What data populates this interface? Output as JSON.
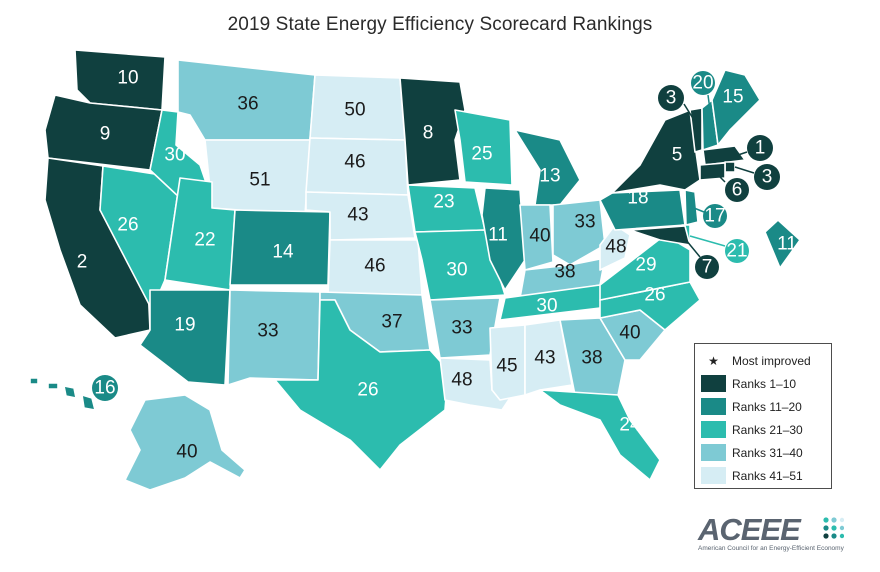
{
  "title": "2019 State Energy Efficiency Scorecard Rankings",
  "colors": {
    "ranks_1_10": "#10403f",
    "ranks_11_20": "#1a8a87",
    "ranks_21_30": "#2cbcae",
    "ranks_31_40": "#7ecad4",
    "ranks_41_51": "#d6edf4",
    "text_dark": "#1b1b1b",
    "text_light": "#ffffff"
  },
  "legend": {
    "most_improved": "Most improved",
    "items": [
      {
        "label": "Ranks 1–10",
        "tier": 1
      },
      {
        "label": "Ranks 11–20",
        "tier": 2
      },
      {
        "label": "Ranks 21–30",
        "tier": 3
      },
      {
        "label": "Ranks 31–40",
        "tier": 4
      },
      {
        "label": "Ranks 41–51",
        "tier": 5
      }
    ]
  },
  "states": [
    {
      "id": "WA",
      "rank": "10",
      "tier": 1
    },
    {
      "id": "OR",
      "rank": "9",
      "tier": 1
    },
    {
      "id": "CA",
      "rank": "2",
      "tier": 1
    },
    {
      "id": "NV",
      "rank": "26",
      "tier": 3
    },
    {
      "id": "ID",
      "rank": "30",
      "tier": 3
    },
    {
      "id": "MT",
      "rank": "36",
      "tier": 4
    },
    {
      "id": "WY",
      "rank": "51",
      "tier": 5
    },
    {
      "id": "UT",
      "rank": "22",
      "tier": 3
    },
    {
      "id": "AZ",
      "rank": "19",
      "tier": 2
    },
    {
      "id": "CO",
      "rank": "14",
      "tier": 2
    },
    {
      "id": "NM",
      "rank": "33",
      "tier": 4
    },
    {
      "id": "ND",
      "rank": "50",
      "tier": 5
    },
    {
      "id": "SD",
      "rank": "46",
      "tier": 5
    },
    {
      "id": "NE",
      "rank": "43",
      "tier": 5
    },
    {
      "id": "KS",
      "rank": "46",
      "tier": 5
    },
    {
      "id": "OK",
      "rank": "37",
      "tier": 4
    },
    {
      "id": "TX",
      "rank": "26",
      "tier": 3
    },
    {
      "id": "MN",
      "rank": "8",
      "tier": 1
    },
    {
      "id": "IA",
      "rank": "23",
      "tier": 3
    },
    {
      "id": "MO",
      "rank": "30",
      "tier": 3
    },
    {
      "id": "AR",
      "rank": "33",
      "tier": 4
    },
    {
      "id": "LA",
      "rank": "48",
      "tier": 5
    },
    {
      "id": "WI",
      "rank": "25",
      "tier": 3
    },
    {
      "id": "IL",
      "rank": "11",
      "tier": 2
    },
    {
      "id": "MI",
      "rank": "13",
      "tier": 2
    },
    {
      "id": "IN",
      "rank": "40",
      "tier": 4
    },
    {
      "id": "OH",
      "rank": "33",
      "tier": 4
    },
    {
      "id": "KY",
      "rank": "38",
      "tier": 4
    },
    {
      "id": "TN",
      "rank": "30",
      "tier": 3
    },
    {
      "id": "MS",
      "rank": "45",
      "tier": 5
    },
    {
      "id": "AL",
      "rank": "43",
      "tier": 5
    },
    {
      "id": "GA",
      "rank": "38",
      "tier": 4
    },
    {
      "id": "FL",
      "rank": "24",
      "tier": 3
    },
    {
      "id": "SC",
      "rank": "40",
      "tier": 4
    },
    {
      "id": "NC",
      "rank": "26",
      "tier": 3
    },
    {
      "id": "VA",
      "rank": "29",
      "tier": 3
    },
    {
      "id": "WV",
      "rank": "48",
      "tier": 5
    },
    {
      "id": "PA",
      "rank": "18",
      "tier": 2
    },
    {
      "id": "NY",
      "rank": "5",
      "tier": 1
    },
    {
      "id": "VT",
      "rank": "3",
      "tier": 1
    },
    {
      "id": "NH",
      "rank": "20",
      "tier": 2
    },
    {
      "id": "ME",
      "rank": "15",
      "tier": 2
    },
    {
      "id": "MA",
      "rank": "1",
      "tier": 1
    },
    {
      "id": "RI",
      "rank": "3",
      "tier": 1
    },
    {
      "id": "CT",
      "rank": "6",
      "tier": 1
    },
    {
      "id": "NJ",
      "rank": "17",
      "tier": 2
    },
    {
      "id": "DE",
      "rank": "21",
      "tier": 3
    },
    {
      "id": "MD",
      "rank": "7",
      "tier": 1
    },
    {
      "id": "DC",
      "rank": "11",
      "tier": 2
    },
    {
      "id": "AK",
      "rank": "40",
      "tier": 4
    },
    {
      "id": "HI",
      "rank": "16",
      "tier": 2
    }
  ],
  "logo": {
    "name": "ACEEE",
    "tagline": "American Council for an Energy-Efficient Economy"
  }
}
